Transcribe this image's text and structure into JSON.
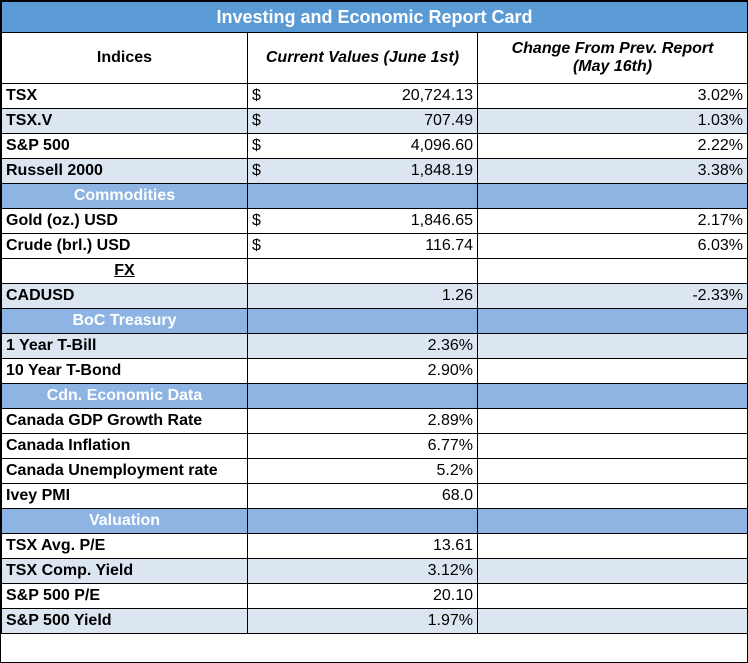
{
  "title": "Investing and Economic Report Card",
  "headers": {
    "indices": "Indices",
    "current": "Current Values (June 1st)",
    "change_line1": "Change From Prev. Report",
    "change_line2": "(May 16th)"
  },
  "currency_symbol": "$",
  "indices": [
    {
      "name": "TSX",
      "value": "20,724.13",
      "change": "3.02%"
    },
    {
      "name": "TSX.V",
      "value": "707.49",
      "change": "1.03%"
    },
    {
      "name": "S&P 500",
      "value": "4,096.60",
      "change": "2.22%"
    },
    {
      "name": "Russell 2000",
      "value": "1,848.19",
      "change": "3.38%"
    }
  ],
  "commodities_title": "Commodities",
  "commodities": [
    {
      "name": "Gold (oz.) USD",
      "value": "1,846.65",
      "change": "2.17%"
    },
    {
      "name": "Crude (brl.) USD",
      "value": "116.74",
      "change": "6.03%"
    }
  ],
  "fx_title": "FX",
  "fx": [
    {
      "name": "CADUSD",
      "value": "1.26",
      "change": "-2.33%"
    }
  ],
  "boc_title": "BoC Treasury",
  "boc": [
    {
      "name": "1 Year T-Bill",
      "value": "2.36%"
    },
    {
      "name": "10 Year T-Bond",
      "value": "2.90%"
    }
  ],
  "econ_title": "Cdn. Economic Data",
  "econ": [
    {
      "name": "Canada GDP Growth Rate",
      "value": "2.89%"
    },
    {
      "name": "Canada Inflation",
      "value": "6.77%"
    },
    {
      "name": "Canada Unemployment rate",
      "value": "5.2%"
    },
    {
      "name": "Ivey PMI",
      "value": "68.0"
    }
  ],
  "valuation_title": "Valuation",
  "valuation": [
    {
      "name": "TSX Avg. P/E",
      "value": "13.61"
    },
    {
      "name": "TSX Comp. Yield",
      "value": "3.12%"
    },
    {
      "name": "S&P 500 P/E",
      "value": "20.10"
    },
    {
      "name": "S&P 500 Yield",
      "value": "1.97%"
    }
  ]
}
